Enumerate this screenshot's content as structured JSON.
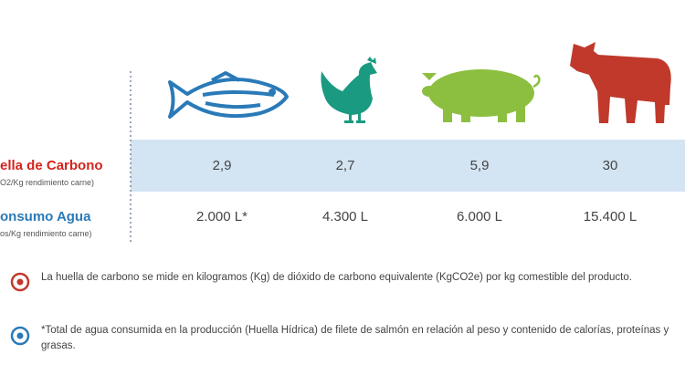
{
  "table": {
    "rows": [
      {
        "label": "ella de Carbono",
        "sublabel": "O2/Kg rendimiento carne)",
        "cells": [
          "2,9",
          "2,7",
          "5,9",
          "30"
        ]
      },
      {
        "label": "onsumo Agua",
        "sublabel": "os/Kg rendimiento carne)",
        "cells": [
          "2.000 L*",
          "4.300 L",
          "6.000 L",
          "15.400 L"
        ]
      }
    ]
  },
  "notes": [
    "La huella de carbono se mide en kilogramos (Kg) de dióxido de carbono equivalente (KgCO2e) por kg comestible del producto.",
    "*Total de agua consumida en la producción (Huella Hídrica) de filete de salmón en relación al peso y contenido de calorías, proteínas y grasas."
  ]
}
